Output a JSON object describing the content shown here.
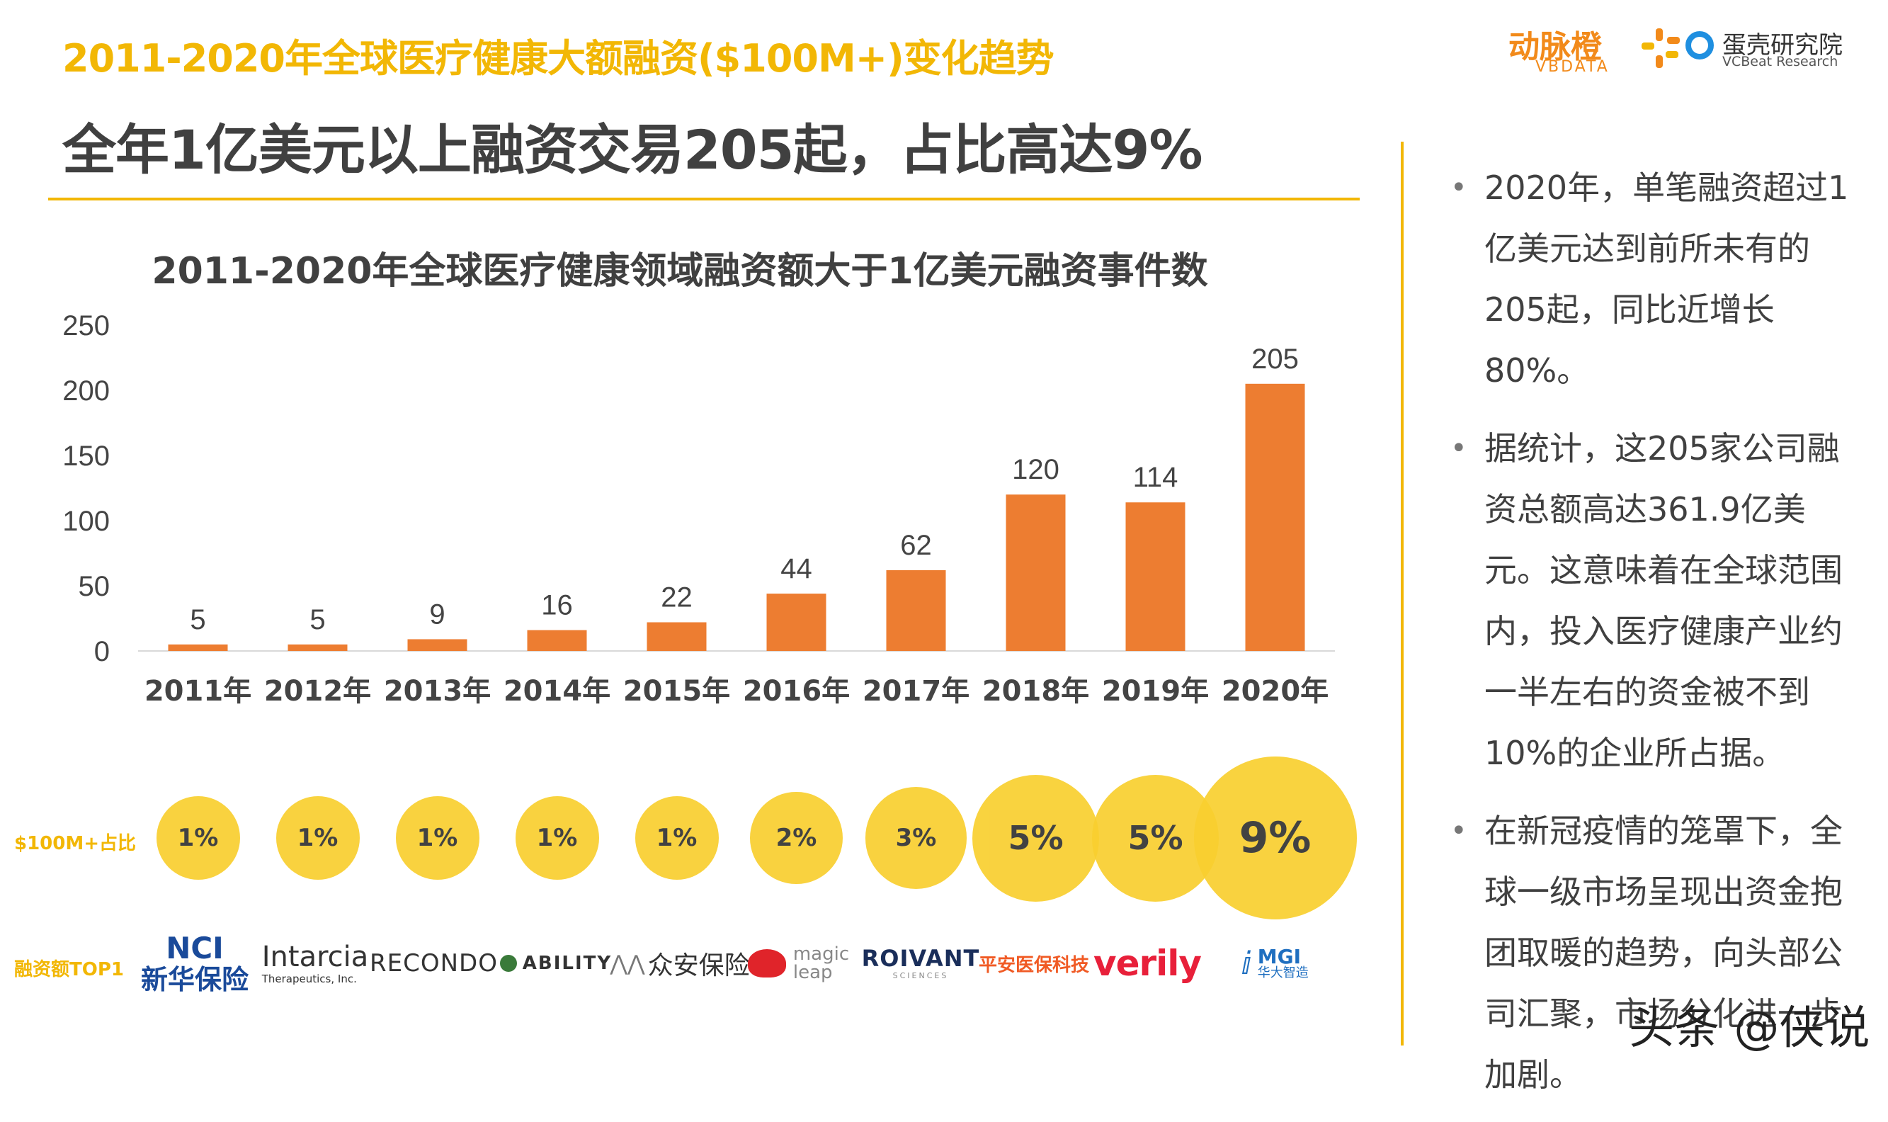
{
  "header": {
    "title": "2011-2020年全球医疗健康大额融资($100M+)变化趋势",
    "headline": "全年1亿美元以上融资交易205起，占比高达9%"
  },
  "logos": {
    "vbdata_cn": "动脉橙",
    "vbdata_en": "VBDATA",
    "vcbeat_cn": "蛋壳研究院",
    "vcbeat_en": "VCBeat Research"
  },
  "colors": {
    "accent": "#f2b705",
    "bar": "#ed7d31",
    "bubble": "#f9cf2f"
  },
  "chart_data": {
    "type": "bar",
    "title": "2011-2020年全球医疗健康领域融资额大于1亿美元融资事件数",
    "categories": [
      "2011年",
      "2012年",
      "2013年",
      "2014年",
      "2015年",
      "2016年",
      "2017年",
      "2018年",
      "2019年",
      "2020年"
    ],
    "values": [
      5,
      5,
      9,
      16,
      22,
      44,
      62,
      120,
      114,
      205
    ],
    "ylim": [
      0,
      250
    ],
    "yticks": [
      0,
      50,
      100,
      150,
      200,
      250
    ],
    "xlabel": "",
    "ylabel": "",
    "grid": false,
    "data_labels": true
  },
  "share_row": {
    "label": "$100M+占比",
    "values": [
      "1%",
      "1%",
      "1%",
      "1%",
      "1%",
      "2%",
      "3%",
      "5%",
      "5%",
      "9%"
    ],
    "percent_numbers": [
      1,
      1,
      1,
      1,
      1,
      2,
      3,
      5,
      5,
      9
    ]
  },
  "top_row": {
    "label": "融资额TOP1",
    "companies": [
      {
        "line1": "NCI",
        "line2": "新华保险"
      },
      {
        "line1": "Intarcia",
        "line2": "Therapeutics, Inc."
      },
      {
        "line1": "RECONDO",
        "line2": ""
      },
      {
        "line1": "ABILITY",
        "line2": ""
      },
      {
        "line1": "众安保险",
        "line2": ""
      },
      {
        "line1": "magic",
        "line2": "leap"
      },
      {
        "line1": "ROIVANT",
        "line2": "SCIENCES"
      },
      {
        "line1": "平安医保科技",
        "line2": ""
      },
      {
        "line1": "verily",
        "line2": ""
      },
      {
        "line1": "MGI",
        "line2": "华大智造"
      }
    ]
  },
  "bullets": [
    "2020年，单笔融资超过1亿美元达到前所未有的205起，同比近增长80%。",
    "据统计，这205家公司融资总额高达361.9亿美元。这意味着在全球范围内，投入医疗健康产业约一半左右的资金被不到10%的企业所占据。",
    "在新冠疫情的笼罩下，全球一级市场呈现出资金抱团取暖的趋势，向头部公司汇聚，市场分化进一步加剧。"
  ],
  "watermark": "头条 @侠说"
}
